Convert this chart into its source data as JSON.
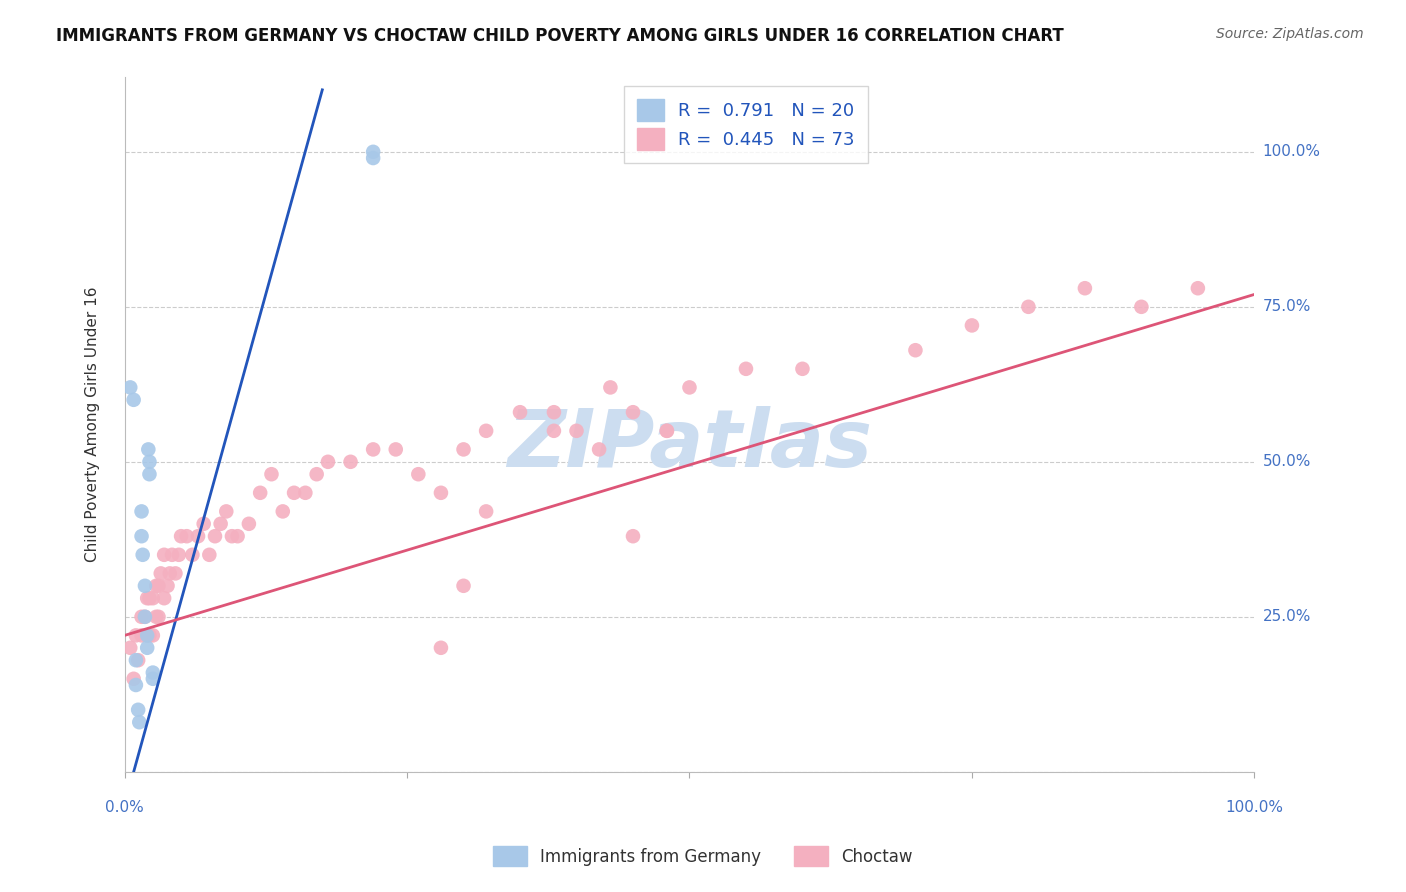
{
  "title": "IMMIGRANTS FROM GERMANY VS CHOCTAW CHILD POVERTY AMONG GIRLS UNDER 16 CORRELATION CHART",
  "source": "Source: ZipAtlas.com",
  "ylabel": "Child Poverty Among Girls Under 16",
  "xlim": [
    0,
    1.0
  ],
  "ylim": [
    0.0,
    1.12
  ],
  "yticks": [
    0.0,
    0.25,
    0.5,
    0.75,
    1.0
  ],
  "ytick_labels": [
    "",
    "25.0%",
    "50.0%",
    "75.0%",
    "100.0%"
  ],
  "xtick_labels_left": "0.0%",
  "xtick_labels_right": "100.0%",
  "blue_R": "0.791",
  "blue_N": "20",
  "pink_R": "0.445",
  "pink_N": "73",
  "blue_color": "#a8c8e8",
  "pink_color": "#f4b0c0",
  "blue_line_color": "#2255bb",
  "pink_line_color": "#dd5577",
  "legend_label_blue": "Immigrants from Germany",
  "legend_label_pink": "Choctaw",
  "watermark": "ZIPatlas",
  "watermark_color": "#ccddf0",
  "blue_scatter_x": [
    0.005,
    0.008,
    0.01,
    0.01,
    0.012,
    0.013,
    0.015,
    0.015,
    0.016,
    0.018,
    0.018,
    0.02,
    0.02,
    0.021,
    0.022,
    0.022,
    0.025,
    0.025,
    0.22,
    0.22
  ],
  "blue_scatter_y": [
    0.62,
    0.6,
    0.18,
    0.14,
    0.1,
    0.08,
    0.42,
    0.38,
    0.35,
    0.3,
    0.25,
    0.22,
    0.2,
    0.52,
    0.5,
    0.48,
    0.16,
    0.15,
    1.0,
    0.99
  ],
  "pink_scatter_x": [
    0.005,
    0.008,
    0.01,
    0.012,
    0.015,
    0.015,
    0.018,
    0.02,
    0.02,
    0.022,
    0.022,
    0.025,
    0.025,
    0.028,
    0.028,
    0.03,
    0.03,
    0.032,
    0.035,
    0.035,
    0.038,
    0.04,
    0.042,
    0.045,
    0.048,
    0.05,
    0.055,
    0.06,
    0.065,
    0.07,
    0.075,
    0.08,
    0.085,
    0.09,
    0.095,
    0.1,
    0.11,
    0.12,
    0.13,
    0.14,
    0.15,
    0.16,
    0.17,
    0.18,
    0.2,
    0.22,
    0.24,
    0.26,
    0.28,
    0.3,
    0.32,
    0.35,
    0.38,
    0.4,
    0.42,
    0.45,
    0.48,
    0.5,
    0.55,
    0.6,
    0.7,
    0.75,
    0.8,
    0.85,
    0.9,
    0.95,
    0.38,
    0.43,
    0.48,
    0.32,
    0.3,
    0.45,
    0.28
  ],
  "pink_scatter_y": [
    0.2,
    0.15,
    0.22,
    0.18,
    0.25,
    0.22,
    0.25,
    0.28,
    0.22,
    0.28,
    0.22,
    0.28,
    0.22,
    0.3,
    0.25,
    0.3,
    0.25,
    0.32,
    0.35,
    0.28,
    0.3,
    0.32,
    0.35,
    0.32,
    0.35,
    0.38,
    0.38,
    0.35,
    0.38,
    0.4,
    0.35,
    0.38,
    0.4,
    0.42,
    0.38,
    0.38,
    0.4,
    0.45,
    0.48,
    0.42,
    0.45,
    0.45,
    0.48,
    0.5,
    0.5,
    0.52,
    0.52,
    0.48,
    0.45,
    0.52,
    0.55,
    0.58,
    0.55,
    0.55,
    0.52,
    0.58,
    0.55,
    0.62,
    0.65,
    0.65,
    0.68,
    0.72,
    0.75,
    0.78,
    0.75,
    0.78,
    0.58,
    0.62,
    0.55,
    0.42,
    0.3,
    0.38,
    0.2
  ],
  "blue_line_x": [
    0.005,
    0.175
  ],
  "blue_line_y": [
    -0.02,
    1.1
  ],
  "pink_line_x": [
    0.0,
    1.0
  ],
  "pink_line_y": [
    0.22,
    0.77
  ]
}
